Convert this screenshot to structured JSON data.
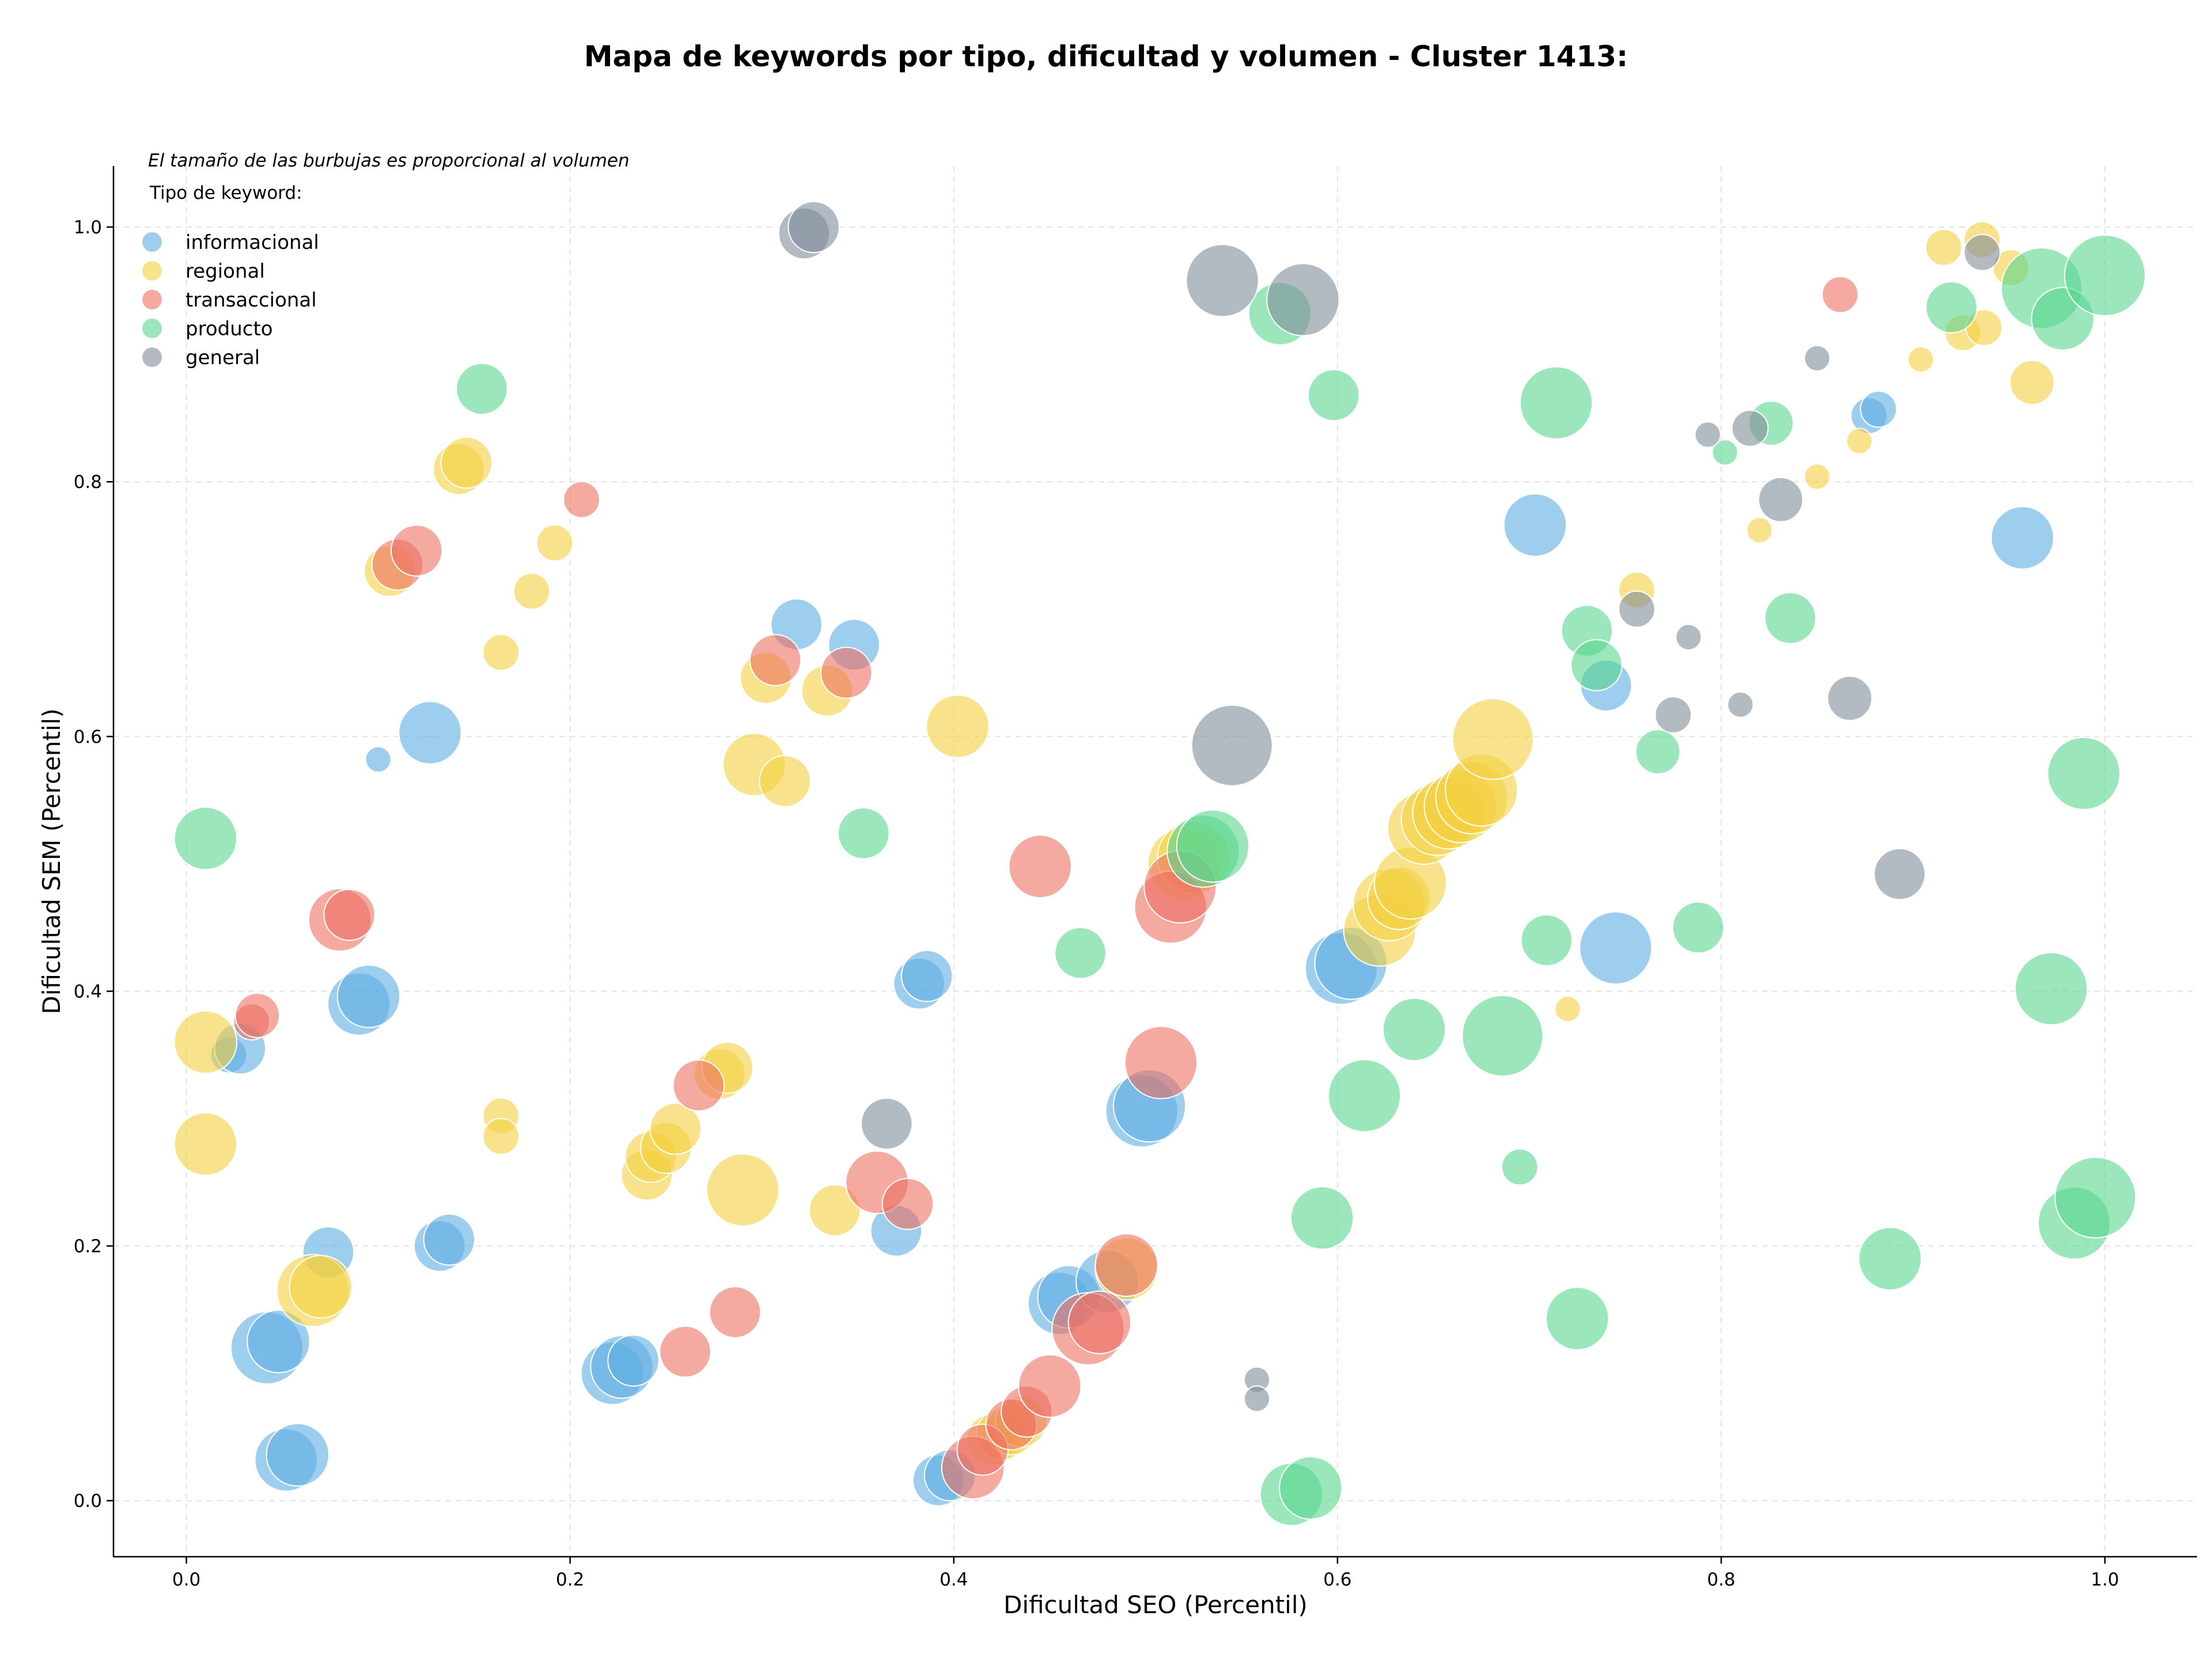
{
  "chart_data": {
    "type": "scatter",
    "title": "Mapa de keywords por tipo, dificultad y volumen - Cluster 1413:",
    "xlabel": "Dificultad SEO (Percentil)",
    "ylabel": "Dificultad SEM (Percentil)",
    "xlim": [
      -0.038,
      1.048
    ],
    "ylim": [
      -0.044,
      1.048
    ],
    "x_ticks": [
      "0.0",
      "0.2",
      "0.4",
      "0.6",
      "0.8",
      "1.0"
    ],
    "y_ticks": [
      "0.0",
      "0.2",
      "0.4",
      "0.6",
      "0.8",
      "1.0"
    ],
    "grid": true,
    "note": "El tamaño de las burbujas es proporcional al volumen",
    "legend": {
      "title": "Tipo de keyword:",
      "placement": "top-left"
    },
    "series": [
      {
        "name": "informacional",
        "color": "#5dade2",
        "points": [
          {
            "x": 0.022,
            "y": 0.35,
            "v": 1
          },
          {
            "x": 0.028,
            "y": 0.355,
            "v": 2
          },
          {
            "x": 0.042,
            "y": 0.12,
            "v": 4
          },
          {
            "x": 0.048,
            "y": 0.125,
            "v": 3
          },
          {
            "x": 0.052,
            "y": 0.032,
            "v": 3
          },
          {
            "x": 0.058,
            "y": 0.036,
            "v": 3
          },
          {
            "x": 0.074,
            "y": 0.195,
            "v": 2
          },
          {
            "x": 0.09,
            "y": 0.39,
            "v": 3
          },
          {
            "x": 0.095,
            "y": 0.396,
            "v": 3
          },
          {
            "x": 0.1,
            "y": 0.582,
            "v": 0.5
          },
          {
            "x": 0.127,
            "y": 0.603,
            "v": 3
          },
          {
            "x": 0.132,
            "y": 0.2,
            "v": 2
          },
          {
            "x": 0.137,
            "y": 0.205,
            "v": 2
          },
          {
            "x": 0.222,
            "y": 0.1,
            "v": 3
          },
          {
            "x": 0.227,
            "y": 0.105,
            "v": 3
          },
          {
            "x": 0.233,
            "y": 0.11,
            "v": 2
          },
          {
            "x": 0.318,
            "y": 0.688,
            "v": 2
          },
          {
            "x": 0.348,
            "y": 0.672,
            "v": 2
          },
          {
            "x": 0.37,
            "y": 0.212,
            "v": 2
          },
          {
            "x": 0.382,
            "y": 0.406,
            "v": 2
          },
          {
            "x": 0.386,
            "y": 0.412,
            "v": 2
          },
          {
            "x": 0.392,
            "y": 0.016,
            "v": 2
          },
          {
            "x": 0.398,
            "y": 0.02,
            "v": 2
          },
          {
            "x": 0.455,
            "y": 0.155,
            "v": 3
          },
          {
            "x": 0.46,
            "y": 0.16,
            "v": 3
          },
          {
            "x": 0.48,
            "y": 0.172,
            "v": 3
          },
          {
            "x": 0.498,
            "y": 0.306,
            "v": 4
          },
          {
            "x": 0.502,
            "y": 0.31,
            "v": 4
          },
          {
            "x": 0.602,
            "y": 0.418,
            "v": 4
          },
          {
            "x": 0.607,
            "y": 0.422,
            "v": 4
          },
          {
            "x": 0.703,
            "y": 0.766,
            "v": 3
          },
          {
            "x": 0.74,
            "y": 0.64,
            "v": 2
          },
          {
            "x": 0.745,
            "y": 0.434,
            "v": 4
          },
          {
            "x": 0.877,
            "y": 0.852,
            "v": 1
          },
          {
            "x": 0.882,
            "y": 0.857,
            "v": 1
          },
          {
            "x": 0.957,
            "y": 0.756,
            "v": 3
          }
        ]
      },
      {
        "name": "regional",
        "color": "#f4d03f",
        "points": [
          {
            "x": 0.01,
            "y": 0.36,
            "v": 3
          },
          {
            "x": 0.01,
            "y": 0.28,
            "v": 3
          },
          {
            "x": 0.066,
            "y": 0.165,
            "v": 4
          },
          {
            "x": 0.07,
            "y": 0.168,
            "v": 3
          },
          {
            "x": 0.106,
            "y": 0.73,
            "v": 2
          },
          {
            "x": 0.142,
            "y": 0.81,
            "v": 2
          },
          {
            "x": 0.146,
            "y": 0.815,
            "v": 2
          },
          {
            "x": 0.164,
            "y": 0.666,
            "v": 1
          },
          {
            "x": 0.164,
            "y": 0.302,
            "v": 1
          },
          {
            "x": 0.164,
            "y": 0.286,
            "v": 1
          },
          {
            "x": 0.18,
            "y": 0.714,
            "v": 1
          },
          {
            "x": 0.192,
            "y": 0.752,
            "v": 1
          },
          {
            "x": 0.24,
            "y": 0.256,
            "v": 2
          },
          {
            "x": 0.242,
            "y": 0.27,
            "v": 2
          },
          {
            "x": 0.25,
            "y": 0.277,
            "v": 2
          },
          {
            "x": 0.255,
            "y": 0.292,
            "v": 2
          },
          {
            "x": 0.278,
            "y": 0.335,
            "v": 2
          },
          {
            "x": 0.282,
            "y": 0.34,
            "v": 2
          },
          {
            "x": 0.29,
            "y": 0.244,
            "v": 4
          },
          {
            "x": 0.296,
            "y": 0.578,
            "v": 3
          },
          {
            "x": 0.302,
            "y": 0.646,
            "v": 2
          },
          {
            "x": 0.312,
            "y": 0.565,
            "v": 2
          },
          {
            "x": 0.334,
            "y": 0.636,
            "v": 2
          },
          {
            "x": 0.338,
            "y": 0.228,
            "v": 2
          },
          {
            "x": 0.402,
            "y": 0.608,
            "v": 3
          },
          {
            "x": 0.42,
            "y": 0.048,
            "v": 2
          },
          {
            "x": 0.425,
            "y": 0.052,
            "v": 2
          },
          {
            "x": 0.43,
            "y": 0.056,
            "v": 2
          },
          {
            "x": 0.435,
            "y": 0.062,
            "v": 2
          },
          {
            "x": 0.49,
            "y": 0.182,
            "v": 3
          },
          {
            "x": 0.52,
            "y": 0.5,
            "v": 4
          },
          {
            "x": 0.525,
            "y": 0.505,
            "v": 4
          },
          {
            "x": 0.622,
            "y": 0.448,
            "v": 4
          },
          {
            "x": 0.627,
            "y": 0.468,
            "v": 4
          },
          {
            "x": 0.632,
            "y": 0.473,
            "v": 3
          },
          {
            "x": 0.638,
            "y": 0.485,
            "v": 4
          },
          {
            "x": 0.645,
            "y": 0.528,
            "v": 4
          },
          {
            "x": 0.652,
            "y": 0.535,
            "v": 4
          },
          {
            "x": 0.658,
            "y": 0.54,
            "v": 4
          },
          {
            "x": 0.664,
            "y": 0.545,
            "v": 4
          },
          {
            "x": 0.67,
            "y": 0.552,
            "v": 4
          },
          {
            "x": 0.675,
            "y": 0.558,
            "v": 4
          },
          {
            "x": 0.681,
            "y": 0.598,
            "v": 5
          },
          {
            "x": 0.72,
            "y": 0.386,
            "v": 0.5
          },
          {
            "x": 0.756,
            "y": 0.715,
            "v": 1
          },
          {
            "x": 0.82,
            "y": 0.762,
            "v": 0.5
          },
          {
            "x": 0.85,
            "y": 0.804,
            "v": 0.5
          },
          {
            "x": 0.872,
            "y": 0.832,
            "v": 0.5
          },
          {
            "x": 0.904,
            "y": 0.896,
            "v": 0.5
          },
          {
            "x": 0.916,
            "y": 0.984,
            "v": 1
          },
          {
            "x": 0.926,
            "y": 0.917,
            "v": 1
          },
          {
            "x": 0.936,
            "y": 0.99,
            "v": 1
          },
          {
            "x": 0.937,
            "y": 0.921,
            "v": 1
          },
          {
            "x": 0.951,
            "y": 0.968,
            "v": 1
          },
          {
            "x": 0.962,
            "y": 0.878,
            "v": 1.5
          }
        ]
      },
      {
        "name": "transaccional",
        "color": "#ec7063",
        "points": [
          {
            "x": 0.034,
            "y": 0.376,
            "v": 1
          },
          {
            "x": 0.037,
            "y": 0.381,
            "v": 1.5
          },
          {
            "x": 0.08,
            "y": 0.456,
            "v": 3
          },
          {
            "x": 0.085,
            "y": 0.46,
            "v": 2
          },
          {
            "x": 0.11,
            "y": 0.735,
            "v": 2
          },
          {
            "x": 0.12,
            "y": 0.746,
            "v": 2
          },
          {
            "x": 0.206,
            "y": 0.786,
            "v": 1
          },
          {
            "x": 0.26,
            "y": 0.117,
            "v": 2
          },
          {
            "x": 0.267,
            "y": 0.326,
            "v": 2
          },
          {
            "x": 0.286,
            "y": 0.148,
            "v": 2
          },
          {
            "x": 0.307,
            "y": 0.66,
            "v": 2
          },
          {
            "x": 0.344,
            "y": 0.65,
            "v": 2
          },
          {
            "x": 0.36,
            "y": 0.25,
            "v": 3
          },
          {
            "x": 0.376,
            "y": 0.233,
            "v": 2
          },
          {
            "x": 0.41,
            "y": 0.026,
            "v": 3
          },
          {
            "x": 0.415,
            "y": 0.04,
            "v": 2
          },
          {
            "x": 0.43,
            "y": 0.06,
            "v": 2
          },
          {
            "x": 0.438,
            "y": 0.07,
            "v": 2
          },
          {
            "x": 0.445,
            "y": 0.498,
            "v": 3
          },
          {
            "x": 0.45,
            "y": 0.09,
            "v": 3
          },
          {
            "x": 0.47,
            "y": 0.135,
            "v": 4
          },
          {
            "x": 0.476,
            "y": 0.14,
            "v": 3
          },
          {
            "x": 0.49,
            "y": 0.185,
            "v": 3
          },
          {
            "x": 0.508,
            "y": 0.344,
            "v": 4
          },
          {
            "x": 0.513,
            "y": 0.466,
            "v": 4
          },
          {
            "x": 0.518,
            "y": 0.482,
            "v": 4
          },
          {
            "x": 0.862,
            "y": 0.947,
            "v": 1
          }
        ]
      },
      {
        "name": "producto",
        "color": "#58d68d",
        "points": [
          {
            "x": 0.01,
            "y": 0.52,
            "v": 3
          },
          {
            "x": 0.154,
            "y": 0.873,
            "v": 2
          },
          {
            "x": 0.353,
            "y": 0.524,
            "v": 2
          },
          {
            "x": 0.466,
            "y": 0.43,
            "v": 2
          },
          {
            "x": 0.53,
            "y": 0.51,
            "v": 4
          },
          {
            "x": 0.535,
            "y": 0.514,
            "v": 4
          },
          {
            "x": 0.57,
            "y": 0.932,
            "v": 3
          },
          {
            "x": 0.576,
            "y": 0.005,
            "v": 3
          },
          {
            "x": 0.586,
            "y": 0.01,
            "v": 3
          },
          {
            "x": 0.592,
            "y": 0.222,
            "v": 3
          },
          {
            "x": 0.598,
            "y": 0.868,
            "v": 2
          },
          {
            "x": 0.614,
            "y": 0.318,
            "v": 4
          },
          {
            "x": 0.64,
            "y": 0.37,
            "v": 3
          },
          {
            "x": 0.686,
            "y": 0.365,
            "v": 5
          },
          {
            "x": 0.695,
            "y": 0.262,
            "v": 1
          },
          {
            "x": 0.709,
            "y": 0.44,
            "v": 2
          },
          {
            "x": 0.714,
            "y": 0.862,
            "v": 4
          },
          {
            "x": 0.725,
            "y": 0.143,
            "v": 3
          },
          {
            "x": 0.73,
            "y": 0.683,
            "v": 2
          },
          {
            "x": 0.735,
            "y": 0.656,
            "v": 2
          },
          {
            "x": 0.767,
            "y": 0.588,
            "v": 1.5
          },
          {
            "x": 0.788,
            "y": 0.45,
            "v": 2
          },
          {
            "x": 0.802,
            "y": 0.823,
            "v": 0.5
          },
          {
            "x": 0.826,
            "y": 0.846,
            "v": 1.5
          },
          {
            "x": 0.836,
            "y": 0.693,
            "v": 2
          },
          {
            "x": 0.888,
            "y": 0.19,
            "v": 3
          },
          {
            "x": 0.92,
            "y": 0.937,
            "v": 2
          },
          {
            "x": 0.967,
            "y": 0.952,
            "v": 5
          },
          {
            "x": 0.972,
            "y": 0.402,
            "v": 4
          },
          {
            "x": 0.978,
            "y": 0.928,
            "v": 3
          },
          {
            "x": 0.984,
            "y": 0.218,
            "v": 4
          },
          {
            "x": 0.989,
            "y": 0.571,
            "v": 4
          },
          {
            "x": 0.995,
            "y": 0.238,
            "v": 5
          },
          {
            "x": 1.0,
            "y": 0.962,
            "v": 5
          }
        ]
      },
      {
        "name": "general",
        "color": "#7f8c9a",
        "points": [
          {
            "x": 0.322,
            "y": 0.995,
            "v": 2
          },
          {
            "x": 0.327,
            "y": 1.0,
            "v": 2
          },
          {
            "x": 0.365,
            "y": 0.296,
            "v": 2
          },
          {
            "x": 0.54,
            "y": 0.958,
            "v": 4
          },
          {
            "x": 0.545,
            "y": 0.593,
            "v": 5
          },
          {
            "x": 0.558,
            "y": 0.095,
            "v": 0.5
          },
          {
            "x": 0.558,
            "y": 0.08,
            "v": 0.5
          },
          {
            "x": 0.582,
            "y": 0.943,
            "v": 4
          },
          {
            "x": 0.756,
            "y": 0.7,
            "v": 1
          },
          {
            "x": 0.775,
            "y": 0.617,
            "v": 1
          },
          {
            "x": 0.783,
            "y": 0.678,
            "v": 0.5
          },
          {
            "x": 0.793,
            "y": 0.837,
            "v": 0.5
          },
          {
            "x": 0.81,
            "y": 0.625,
            "v": 0.5
          },
          {
            "x": 0.815,
            "y": 0.842,
            "v": 1
          },
          {
            "x": 0.831,
            "y": 0.786,
            "v": 1.5
          },
          {
            "x": 0.85,
            "y": 0.897,
            "v": 0.5
          },
          {
            "x": 0.867,
            "y": 0.63,
            "v": 1.5
          },
          {
            "x": 0.893,
            "y": 0.492,
            "v": 2
          },
          {
            "x": 0.936,
            "y": 0.98,
            "v": 1
          }
        ]
      }
    ]
  }
}
